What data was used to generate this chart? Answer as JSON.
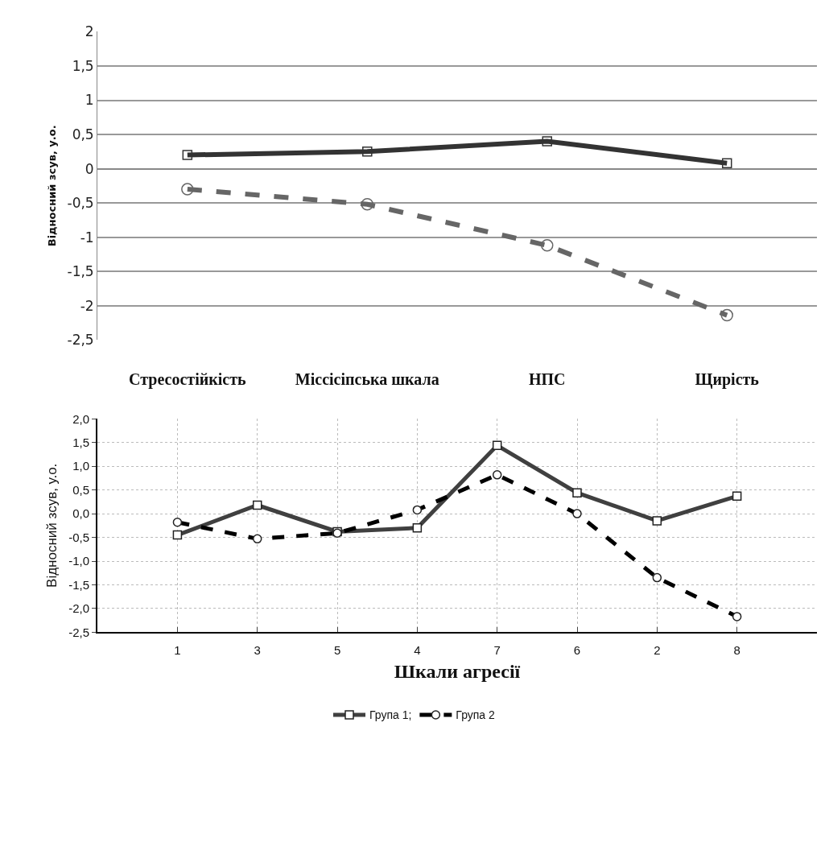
{
  "chart_data": [
    {
      "type": "line",
      "categories": [
        "Стресостійкість",
        "Міссісіпська шкала",
        "НПС",
        "Щирість"
      ],
      "ylabel": "Відносний зсув, у.о.",
      "ylim": [
        -2.5,
        2
      ],
      "yticks": [
        {
          "value": -2.5,
          "label": "-2,5"
        },
        -2,
        {
          "value": -1.5,
          "label": "-1,5"
        },
        -1,
        {
          "value": -0.5,
          "label": "-0,5"
        },
        0,
        {
          "value": 0.5,
          "label": "0,5"
        },
        1,
        {
          "value": 1.5,
          "label": "1,5"
        },
        2
      ],
      "grid": "y",
      "legend": false,
      "series": [
        {
          "color": "#333333",
          "values": [
            0.2,
            0.25,
            0.4,
            0.08
          ],
          "marker": "square",
          "line_style": "solid"
        },
        {
          "color": "#666666",
          "values": [
            -0.3,
            -0.52,
            -1.12,
            -2.14
          ],
          "marker": "circle",
          "line_style": "dashed"
        }
      ]
    },
    {
      "type": "line",
      "categories": [
        null,
        "1",
        "3",
        "5",
        "4",
        "7",
        "6",
        "2",
        "8",
        null
      ],
      "xlabel": "Шкали агресії",
      "ylabel": "Відносний зсув, у.о.",
      "ylim": [
        -2.5,
        2
      ],
      "yticks": [
        {
          "value": -2.5,
          "label": "-2,5"
        },
        {
          "value": -2,
          "label": "-2,0"
        },
        {
          "value": -1.5,
          "label": "-1,5"
        },
        {
          "value": -1,
          "label": "-1,0"
        },
        {
          "value": -0.5,
          "label": "-0,5"
        },
        {
          "value": 0,
          "label": "0,0"
        },
        {
          "value": 0.5,
          "label": "0,5"
        },
        {
          "value": 1,
          "label": "1,0"
        },
        {
          "value": 1.5,
          "label": "1,5"
        },
        {
          "value": 2,
          "label": "2,0"
        }
      ],
      "grid": true,
      "legend": "bottom",
      "series": [
        {
          "name": "Група 1;",
          "color": "#404040",
          "values": [
            null,
            -0.45,
            0.18,
            -0.38,
            -0.3,
            1.44,
            0.44,
            -0.15,
            0.37,
            null
          ],
          "marker": "square",
          "line_style": "solid"
        },
        {
          "name": "Група 2",
          "color": "#000000",
          "values": [
            null,
            -0.18,
            -0.53,
            -0.41,
            0.08,
            0.82,
            0.0,
            -1.35,
            -2.17,
            null
          ],
          "marker": "circle",
          "line_style": "dashed"
        }
      ]
    }
  ]
}
